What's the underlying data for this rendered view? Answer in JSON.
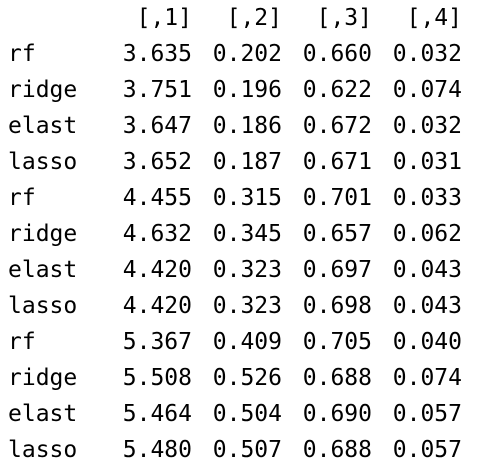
{
  "console": {
    "columns": [
      "[,1]",
      "[,2]",
      "[,3]",
      "[,4]"
    ],
    "rows": [
      {
        "name": "rf",
        "values": [
          "3.635",
          "0.202",
          "0.660",
          "0.032"
        ]
      },
      {
        "name": "ridge",
        "values": [
          "3.751",
          "0.196",
          "0.622",
          "0.074"
        ]
      },
      {
        "name": "elast",
        "values": [
          "3.647",
          "0.186",
          "0.672",
          "0.032"
        ]
      },
      {
        "name": "lasso",
        "values": [
          "3.652",
          "0.187",
          "0.671",
          "0.031"
        ]
      },
      {
        "name": "rf",
        "values": [
          "4.455",
          "0.315",
          "0.701",
          "0.033"
        ]
      },
      {
        "name": "ridge",
        "values": [
          "4.632",
          "0.345",
          "0.657",
          "0.062"
        ]
      },
      {
        "name": "elast",
        "values": [
          "4.420",
          "0.323",
          "0.697",
          "0.043"
        ]
      },
      {
        "name": "lasso",
        "values": [
          "4.420",
          "0.323",
          "0.698",
          "0.043"
        ]
      },
      {
        "name": "rf",
        "values": [
          "5.367",
          "0.409",
          "0.705",
          "0.040"
        ]
      },
      {
        "name": "ridge",
        "values": [
          "5.508",
          "0.526",
          "0.688",
          "0.074"
        ]
      },
      {
        "name": "elast",
        "values": [
          "5.464",
          "0.504",
          "0.690",
          "0.057"
        ]
      },
      {
        "name": "lasso",
        "values": [
          "5.480",
          "0.507",
          "0.688",
          "0.057"
        ]
      }
    ]
  }
}
